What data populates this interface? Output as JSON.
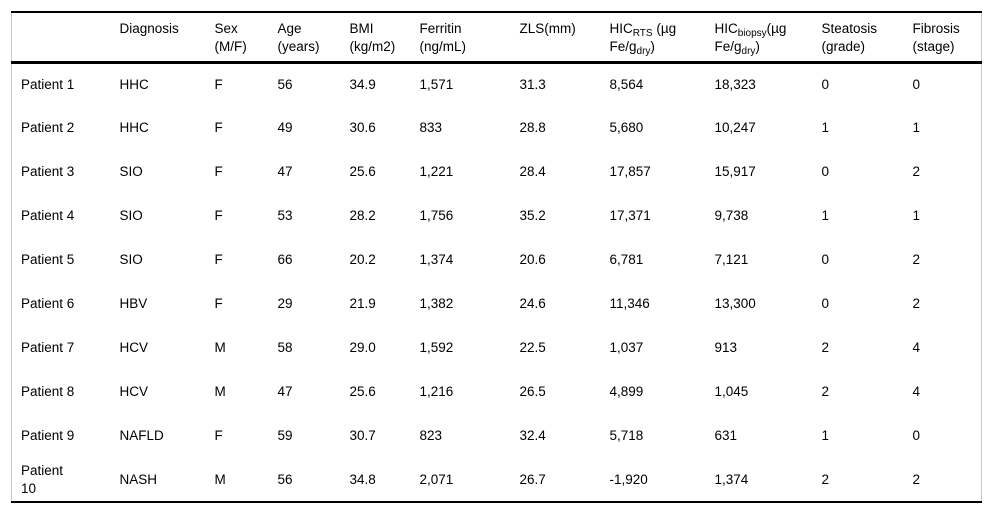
{
  "table": {
    "column_keys": [
      "patient",
      "diagnosis",
      "sex",
      "age",
      "bmi",
      "ferritin",
      "zls",
      "hic_rts",
      "hic_biopsy",
      "steatosis",
      "fibrosis"
    ],
    "columns": {
      "patient": {
        "label": ""
      },
      "diagnosis": {
        "line1": "Diagnosis",
        "line2": ""
      },
      "sex": {
        "line1": "Sex",
        "line2": "(M/F)"
      },
      "age": {
        "line1": "Age",
        "line2": "(years)"
      },
      "bmi": {
        "line1": "BMI",
        "line2": "(kg/m2)"
      },
      "ferritin": {
        "line1": "Ferritin",
        "line2": "(ng/mL)"
      },
      "zls": {
        "line1": "ZLS(mm)",
        "line2": ""
      },
      "hic_rts": {
        "l1_base": "HIC",
        "l1_sub": "RTS",
        "l1_rest": " (µg",
        "l2_base": "Fe/g",
        "l2_sub": "dry",
        "l2_rest": ")"
      },
      "hic_biopsy": {
        "l1_base": "HIC",
        "l1_sub": "biopsy",
        "l1_rest": "(µg",
        "l2_base": "Fe/g",
        "l2_sub": "dry",
        "l2_rest": ")"
      },
      "steatosis": {
        "line1": "Steatosis",
        "line2": "(grade)"
      },
      "fibrosis": {
        "line1": "Fibrosis",
        "line2": "(stage)"
      }
    },
    "rows": [
      {
        "patient": "Patient 1",
        "diagnosis": "HHC",
        "sex": "F",
        "age": "56",
        "bmi": "34.9",
        "ferritin": "1,571",
        "zls": "31.3",
        "hic_rts": "8,564",
        "hic_biopsy": "18,323",
        "steatosis": "0",
        "fibrosis": "0"
      },
      {
        "patient": "Patient 2",
        "diagnosis": "HHC",
        "sex": "F",
        "age": "49",
        "bmi": "30.6",
        "ferritin": "833",
        "zls": "28.8",
        "hic_rts": "5,680",
        "hic_biopsy": "10,247",
        "steatosis": "1",
        "fibrosis": "1"
      },
      {
        "patient": "Patient 3",
        "diagnosis": "SIO",
        "sex": "F",
        "age": "47",
        "bmi": "25.6",
        "ferritin": "1,221",
        "zls": "28.4",
        "hic_rts": "17,857",
        "hic_biopsy": "15,917",
        "steatosis": "0",
        "fibrosis": "2"
      },
      {
        "patient": "Patient 4",
        "diagnosis": "SIO",
        "sex": "F",
        "age": "53",
        "bmi": "28.2",
        "ferritin": "1,756",
        "zls": "35.2",
        "hic_rts": "17,371",
        "hic_biopsy": "9,738",
        "steatosis": "1",
        "fibrosis": "1"
      },
      {
        "patient": "Patient 5",
        "diagnosis": "SIO",
        "sex": "F",
        "age": "66",
        "bmi": "20.2",
        "ferritin": "1,374",
        "zls": "20.6",
        "hic_rts": "6,781",
        "hic_biopsy": "7,121",
        "steatosis": "0",
        "fibrosis": "2"
      },
      {
        "patient": "Patient 6",
        "diagnosis": "HBV",
        "sex": "F",
        "age": "29",
        "bmi": "21.9",
        "ferritin": "1,382",
        "zls": "24.6",
        "hic_rts": "11,346",
        "hic_biopsy": "13,300",
        "steatosis": "0",
        "fibrosis": "2"
      },
      {
        "patient": "Patient 7",
        "diagnosis": "HCV",
        "sex": "M",
        "age": "58",
        "bmi": "29.0",
        "ferritin": "1,592",
        "zls": "22.5",
        "hic_rts": "1,037",
        "hic_biopsy": "913",
        "steatosis": "2",
        "fibrosis": "4"
      },
      {
        "patient": "Patient 8",
        "diagnosis": "HCV",
        "sex": "M",
        "age": "47",
        "bmi": "25.6",
        "ferritin": "1,216",
        "zls": "26.5",
        "hic_rts": "4,899",
        "hic_biopsy": "1,045",
        "steatosis": "2",
        "fibrosis": "4"
      },
      {
        "patient": "Patient 9",
        "diagnosis": "NAFLD",
        "sex": "F",
        "age": "59",
        "bmi": "30.7",
        "ferritin": "823",
        "zls": "32.4",
        "hic_rts": "5,718",
        "hic_biopsy": "631",
        "steatosis": "1",
        "fibrosis": "0"
      },
      {
        "patient": "Patient 10",
        "diagnosis": "NASH",
        "sex": "M",
        "age": "56",
        "bmi": "34.8",
        "ferritin": "2,071",
        "zls": "26.7",
        "hic_rts": "-1,920",
        "hic_biopsy": "1,374",
        "steatosis": "2",
        "fibrosis": "2"
      }
    ]
  }
}
